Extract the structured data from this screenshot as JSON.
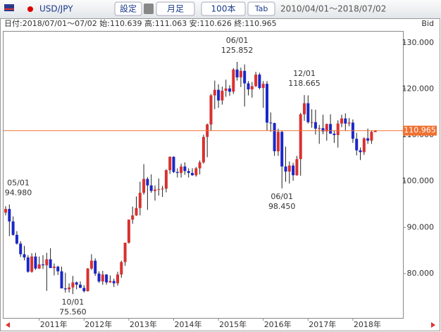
{
  "toolbar": {
    "pair": "USD/JPY",
    "settings": "設定",
    "timeframe": "月足",
    "count": "100本",
    "tab": "Tab",
    "range": "2010/04/01～2018/07/02"
  },
  "chart_data": {
    "type": "candlestick",
    "info": "日付:2018/07/01～07/02 始:110.639 高:111.063 安:110.626 終:110.965",
    "price_side": "Bid",
    "categories": [
      null,
      null,
      null,
      null,
      null,
      null,
      null,
      null,
      null,
      "2011年",
      null,
      null,
      null,
      null,
      null,
      null,
      null,
      null,
      null,
      null,
      null,
      "2012年",
      null,
      null,
      null,
      null,
      null,
      null,
      null,
      null,
      null,
      null,
      null,
      "2013年",
      null,
      null,
      null,
      null,
      null,
      null,
      null,
      null,
      null,
      null,
      null,
      "2014年",
      null,
      null,
      null,
      null,
      null,
      null,
      null,
      null,
      null,
      null,
      null,
      "2015年",
      null,
      null,
      null,
      null,
      null,
      null,
      null,
      null,
      null,
      null,
      null,
      "2016年",
      null,
      null,
      null,
      null,
      null,
      null,
      null,
      null,
      null,
      null,
      null,
      "2017年",
      null,
      null,
      null,
      null,
      null,
      null,
      null,
      null,
      null,
      null,
      null,
      "2018年",
      null,
      null,
      null,
      null,
      null,
      null
    ],
    "open": [
      93.2,
      94.0,
      91.3,
      88.4,
      86.5,
      84.2,
      83.5,
      80.4,
      83.7,
      81.1,
      82.0,
      81.8,
      83.1,
      81.2,
      81.5,
      80.5,
      76.8,
      76.6,
      77.0,
      78.1,
      77.6,
      76.9,
      76.2,
      81.1,
      82.8,
      80.0,
      78.3,
      79.8,
      78.1,
      78.4,
      77.9,
      79.8,
      82.5,
      86.7,
      91.7,
      92.6,
      94.2,
      97.5,
      100.5,
      99.1,
      97.9,
      98.2,
      98.3,
      98.4,
      102.4,
      105.3,
      102.0,
      101.8,
      103.2,
      102.2,
      101.8,
      101.3,
      102.8,
      104.1,
      109.6,
      112.3,
      118.6,
      119.8,
      117.5,
      119.6,
      120.1,
      119.4,
      124.2,
      122.5,
      123.9,
      121.2,
      119.9,
      120.6,
      123.1,
      120.2,
      121.1,
      112.7,
      112.6,
      106.5,
      110.7,
      103.2,
      102.1,
      103.4,
      101.3,
      104.8,
      114.5,
      116.9,
      112.8,
      112.8,
      111.4,
      111.5,
      110.8,
      112.4,
      110.3,
      110.0,
      112.5,
      113.6,
      112.5,
      112.7,
      109.2,
      106.7,
      106.3,
      109.3,
      108.8,
      110.639
    ],
    "high": [
      94.6,
      94.98,
      92.4,
      89.2,
      87.0,
      86.0,
      84.0,
      84.4,
      84.5,
      83.7,
      84.0,
      84.5,
      85.5,
      82.2,
      81.7,
      81.5,
      80.2,
      77.9,
      79.5,
      78.3,
      78.3,
      77.5,
      81.2,
      84.2,
      83.3,
      80.5,
      80.6,
      79.9,
      79.6,
      78.9,
      80.4,
      82.8,
      86.6,
      91.3,
      94.5,
      96.7,
      99.9,
      103.7,
      100.9,
      101.5,
      99.1,
      100.6,
      99.0,
      102.6,
      105.4,
      105.4,
      102.8,
      103.8,
      104.1,
      102.8,
      102.8,
      103.1,
      104.5,
      110.1,
      112.5,
      118.9,
      121.8,
      121.0,
      120.5,
      122.0,
      120.8,
      124.5,
      125.852,
      124.6,
      125.3,
      121.7,
      121.5,
      123.7,
      123.5,
      121.7,
      121.7,
      114.9,
      112.7,
      111.4,
      110.9,
      107.5,
      104.3,
      104.0,
      105.5,
      114.8,
      118.665,
      118.6,
      115.6,
      115.5,
      112.2,
      114.4,
      112.5,
      114.5,
      111.0,
      113.2,
      114.4,
      114.7,
      113.7,
      113.4,
      110.5,
      107.3,
      109.5,
      111.4,
      111.0,
      111.063
    ],
    "low": [
      92.6,
      88.1,
      88.2,
      86.3,
      83.6,
      82.9,
      80.2,
      80.2,
      80.8,
      81.0,
      81.0,
      76.25,
      81.5,
      79.6,
      79.7,
      76.9,
      75.9,
      75.9,
      75.56,
      76.6,
      76.9,
      75.9,
      76.1,
      80.8,
      79.5,
      78.0,
      77.6,
      77.6,
      78.0,
      77.1,
      77.4,
      79.1,
      81.7,
      86.5,
      90.8,
      92.5,
      92.6,
      97.1,
      93.8,
      97.5,
      95.8,
      96.9,
      96.6,
      97.6,
      101.6,
      101.8,
      100.8,
      100.8,
      101.4,
      100.8,
      101.2,
      101.0,
      101.5,
      103.8,
      105.2,
      111.0,
      115.6,
      115.9,
      116.6,
      118.3,
      118.5,
      118.9,
      121.8,
      120.4,
      116.2,
      118.6,
      118.1,
      120.4,
      119.9,
      115.9,
      110.98,
      110.7,
      105.5,
      105.5,
      98.45,
      99.9,
      99.5,
      100.1,
      101.2,
      101.2,
      113.1,
      112.5,
      111.6,
      110.1,
      108.1,
      110.2,
      108.8,
      110.6,
      108.3,
      107.3,
      111.7,
      110.9,
      111.9,
      108.3,
      105.6,
      104.6,
      105.7,
      108.1,
      108.1,
      110.626
    ],
    "close": [
      94.0,
      91.3,
      88.4,
      86.5,
      84.2,
      83.5,
      80.4,
      83.7,
      81.1,
      82.0,
      81.8,
      83.1,
      81.2,
      81.5,
      80.5,
      76.8,
      76.6,
      77.0,
      78.1,
      77.6,
      76.9,
      76.2,
      81.1,
      82.8,
      80.0,
      78.3,
      79.8,
      78.1,
      78.4,
      77.9,
      79.8,
      82.5,
      86.7,
      91.7,
      92.6,
      94.2,
      97.5,
      100.5,
      99.1,
      97.9,
      98.2,
      98.3,
      98.4,
      102.4,
      105.3,
      102.0,
      101.8,
      103.2,
      102.2,
      101.8,
      101.3,
      102.8,
      104.1,
      109.6,
      112.3,
      118.6,
      119.8,
      117.5,
      119.6,
      120.1,
      119.4,
      124.2,
      122.5,
      123.9,
      121.2,
      119.9,
      120.6,
      123.1,
      120.2,
      121.1,
      112.7,
      112.6,
      106.5,
      110.7,
      103.2,
      102.1,
      103.4,
      101.3,
      104.8,
      114.5,
      116.9,
      112.8,
      112.8,
      111.4,
      111.5,
      110.8,
      112.4,
      110.3,
      110.0,
      112.5,
      113.6,
      112.5,
      112.7,
      109.2,
      106.7,
      106.3,
      109.3,
      108.8,
      110.7,
      110.965
    ],
    "up_color": "#d93030",
    "down_color": "#1a28c8",
    "ylim": [
      70.4,
      132.4
    ],
    "yticks": [
      {
        "value": 80,
        "label": "80.000"
      },
      {
        "value": 90,
        "label": "90.000"
      },
      {
        "value": 100,
        "label": "100.000"
      },
      {
        "value": 110,
        "label": "110.000"
      },
      {
        "value": 120,
        "label": "120.000"
      },
      {
        "value": 130,
        "label": "130.000"
      }
    ],
    "annotations": [
      {
        "date": "05/01",
        "value": 94.98,
        "label": "94.980"
      },
      {
        "date": "10/01",
        "value": 75.56,
        "label": "75.560"
      },
      {
        "date": "06/01",
        "value": 125.852,
        "label": "125.852"
      },
      {
        "date": "06/01",
        "value": 98.45,
        "label": "98.450"
      },
      {
        "date": "12/01",
        "value": 118.665,
        "label": "118.665"
      }
    ],
    "last_price": {
      "value": 110.965,
      "label": "110.965"
    },
    "last_color": "#f07030"
  }
}
